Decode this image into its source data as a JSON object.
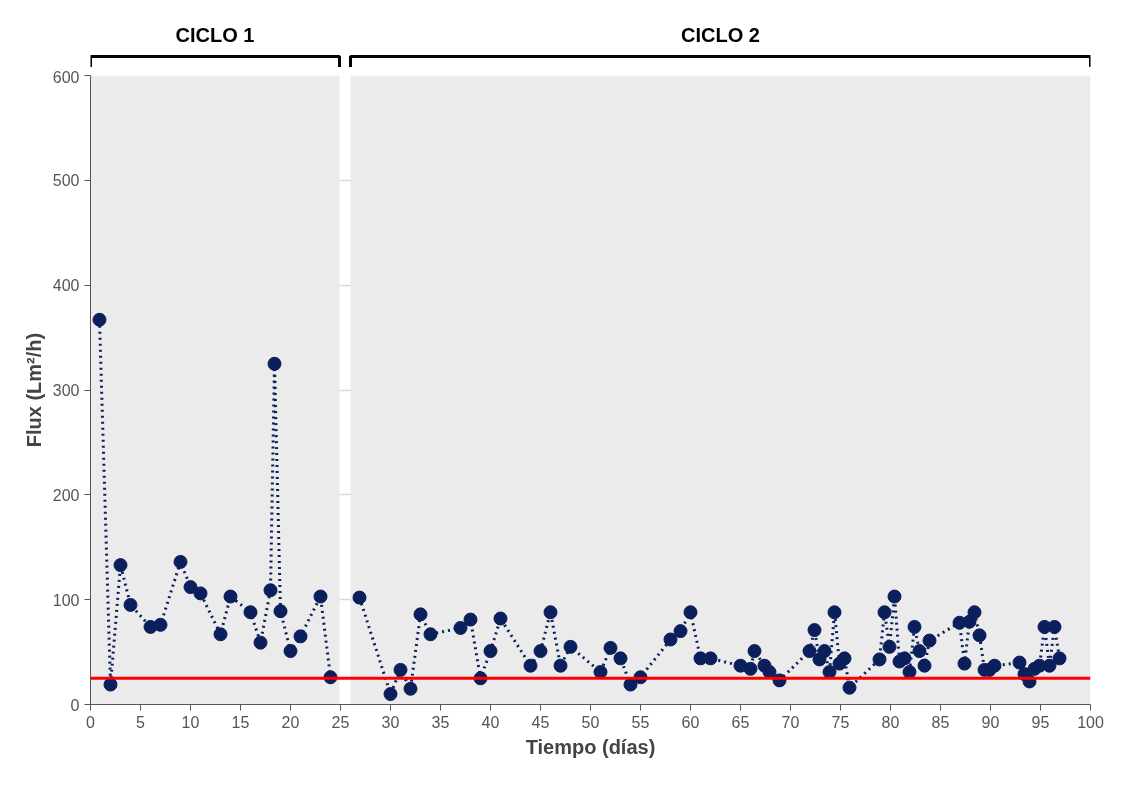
{
  "chart_data": {
    "type": "line",
    "xlabel": "Tiempo (días)",
    "ylabel": "Flux (Lm²/h)",
    "xlim": [
      0,
      100
    ],
    "ylim": [
      0,
      600
    ],
    "xticks": [
      0,
      5,
      10,
      15,
      20,
      25,
      30,
      35,
      40,
      45,
      50,
      55,
      60,
      65,
      70,
      75,
      80,
      85,
      90,
      95,
      100
    ],
    "yticks": [
      0,
      100,
      200,
      300,
      400,
      500,
      600
    ],
    "grid": "y",
    "marker": "circle",
    "line_style": "dotted",
    "series": [
      {
        "color": "#0b1f5c",
        "x": [
          0.9,
          2,
          3,
          4,
          6,
          7,
          9,
          10,
          11,
          13,
          14,
          16,
          17,
          18,
          18.4,
          19,
          20,
          21,
          23,
          24,
          25.5,
          26.9,
          30,
          31,
          32,
          33,
          34,
          37,
          38,
          39,
          40,
          41,
          44,
          45,
          46,
          47,
          48,
          51,
          52,
          53,
          54,
          55,
          58,
          59,
          60,
          61,
          62,
          65,
          66,
          66.4,
          67.4,
          67.9,
          68.9,
          71.9,
          72.4,
          72.9,
          73.4,
          73.9,
          74.4,
          74.9,
          75.4,
          75.9,
          78.9,
          79.4,
          79.9,
          80.4,
          80.9,
          81.4,
          81.9,
          82.4,
          82.9,
          83.4,
          83.9,
          86.9,
          87.4,
          87.9,
          88.4,
          88.9,
          89.4,
          89.9,
          90.4,
          92.9,
          93.4,
          93.9,
          94.4,
          94.9,
          95.4,
          95.9,
          96.4,
          96.9
        ],
        "values": [
          367,
          19,
          133,
          95,
          74,
          76,
          136,
          112,
          106,
          67,
          103,
          88,
          59,
          109,
          325,
          89,
          51,
          65,
          103,
          26,
          null,
          102,
          10,
          33,
          15,
          86,
          67,
          73,
          81,
          25,
          51,
          82,
          37,
          51,
          88,
          37,
          55,
          31,
          54,
          44,
          19,
          26,
          62,
          70,
          88,
          44,
          44,
          37,
          34,
          51,
          37,
          31,
          23,
          51,
          71,
          43,
          51,
          31,
          88,
          39,
          44,
          16,
          43,
          88,
          55,
          103,
          41,
          44,
          31,
          74,
          51,
          37,
          61,
          78,
          39,
          79,
          88,
          66,
          33,
          33,
          37,
          40,
          29,
          22,
          34,
          37,
          74,
          37,
          74,
          44
        ]
      }
    ],
    "ref_lines": [
      {
        "axis": "y",
        "value": 25,
        "color": "#ff0000",
        "line_style": "solid"
      }
    ],
    "bands": [
      {
        "axis": "x",
        "from": 0,
        "to": 24.9,
        "label": "CICLO 1",
        "color": "#ebebeb"
      },
      {
        "axis": "x",
        "from": 26,
        "to": 100,
        "label": "CICLO 2",
        "color": "#ebebeb"
      }
    ]
  }
}
